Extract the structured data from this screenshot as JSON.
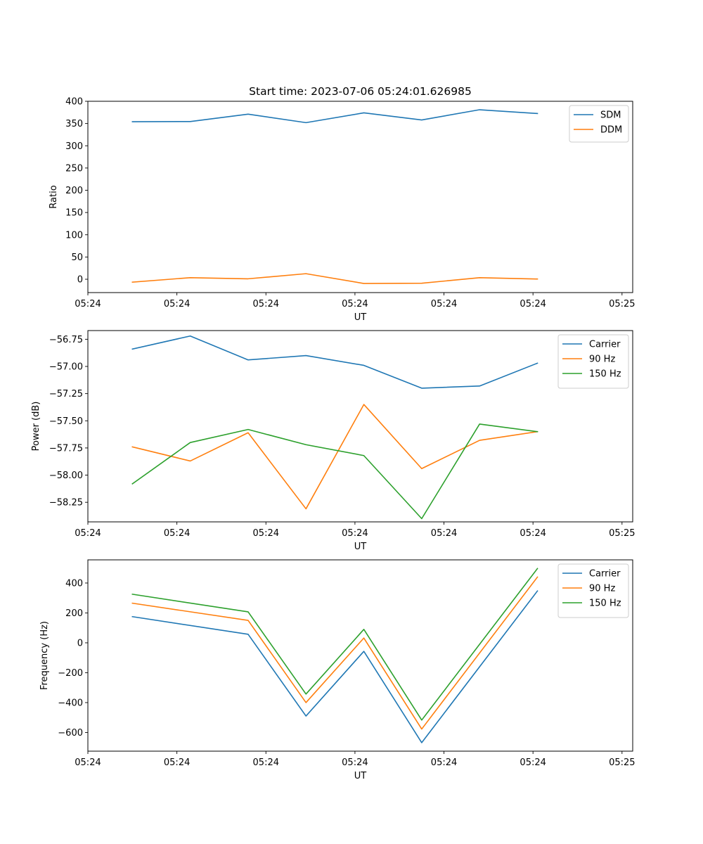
{
  "title": "Start time: 2023-07-06 05:24:01.626985",
  "colors": {
    "blue": "#1f77b4",
    "orange": "#ff7f0e",
    "green": "#2ca02c"
  },
  "chart_data": [
    {
      "type": "line",
      "title": "Start time: 2023-07-06 05:24:01.626985",
      "xlabel": "UT",
      "ylabel": "Ratio",
      "x_tick_labels": [
        "05:24",
        "05:24",
        "05:24",
        "05:24",
        "05:24",
        "05:24",
        "05:25"
      ],
      "y_ticks": [
        0,
        50,
        100,
        150,
        200,
        250,
        300,
        350,
        400
      ],
      "y_tick_labels": [
        "0",
        "50",
        "100",
        "150",
        "200",
        "250",
        "300",
        "350",
        "400"
      ],
      "ylim": [
        -30,
        400
      ],
      "xlim": [
        0,
        6.12
      ],
      "x": [
        0.5,
        1.15,
        1.8,
        2.45,
        3.1,
        3.75,
        4.4,
        5.05
      ],
      "legend": "top-right",
      "series": [
        {
          "name": "SDM",
          "color": "#1f77b4",
          "values": [
            354,
            354.5,
            371,
            352,
            374,
            358,
            381,
            372.5
          ]
        },
        {
          "name": "DDM",
          "color": "#ff7f0e",
          "values": [
            -6.5,
            3.5,
            1,
            12.5,
            -9.5,
            -9,
            3.5,
            0.5
          ]
        }
      ]
    },
    {
      "type": "line",
      "title": "",
      "xlabel": "UT",
      "ylabel": "Power (dB)",
      "x_tick_labels": [
        "05:24",
        "05:24",
        "05:24",
        "05:24",
        "05:24",
        "05:24",
        "05:25"
      ],
      "y_ticks": [
        -58.25,
        -58.0,
        -57.75,
        -57.5,
        -57.25,
        -57.0,
        -56.75
      ],
      "y_tick_labels": [
        "−58.25",
        "−58.00",
        "−57.75",
        "−57.50",
        "−57.25",
        "−57.00",
        "−56.75"
      ],
      "ylim": [
        -58.43,
        -56.67
      ],
      "xlim": [
        0,
        6.12
      ],
      "x": [
        0.5,
        1.15,
        1.8,
        2.45,
        3.1,
        3.75,
        4.4,
        5.05
      ],
      "legend": "top-right",
      "series": [
        {
          "name": "Carrier",
          "color": "#1f77b4",
          "values": [
            -56.84,
            -56.72,
            -56.94,
            -56.9,
            -56.99,
            -57.2,
            -57.18,
            -56.97
          ]
        },
        {
          "name": "90 Hz",
          "color": "#ff7f0e",
          "values": [
            -57.74,
            -57.87,
            -57.61,
            -58.31,
            -57.35,
            -57.94,
            -57.68,
            -57.6
          ]
        },
        {
          "name": "150 Hz",
          "color": "#2ca02c",
          "values": [
            -58.08,
            -57.7,
            -57.58,
            -57.72,
            -57.82,
            -58.4,
            -57.53,
            -57.6
          ]
        }
      ]
    },
    {
      "type": "line",
      "title": "",
      "xlabel": "UT",
      "ylabel": "Frequency (Hz)",
      "x_tick_labels": [
        "05:24",
        "05:24",
        "05:24",
        "05:24",
        "05:24",
        "05:24",
        "05:25"
      ],
      "y_ticks": [
        -600,
        -400,
        -200,
        0,
        200,
        400
      ],
      "y_tick_labels": [
        "−600",
        "−400",
        "−200",
        "0",
        "200",
        "400"
      ],
      "ylim": [
        -725,
        555
      ],
      "xlim": [
        0,
        6.12
      ],
      "x": [
        0.5,
        1.8,
        2.45,
        3.1,
        3.75,
        5.05
      ],
      "legend": "top-right",
      "series": [
        {
          "name": "Carrier",
          "color": "#1f77b4",
          "values": [
            175,
            57,
            -490,
            -57,
            -668,
            347
          ]
        },
        {
          "name": "90 Hz",
          "color": "#ff7f0e",
          "values": [
            265,
            150,
            -400,
            32,
            -577,
            440
          ]
        },
        {
          "name": "150 Hz",
          "color": "#2ca02c",
          "values": [
            325,
            207,
            -343,
            90,
            -517,
            497
          ]
        }
      ]
    }
  ]
}
